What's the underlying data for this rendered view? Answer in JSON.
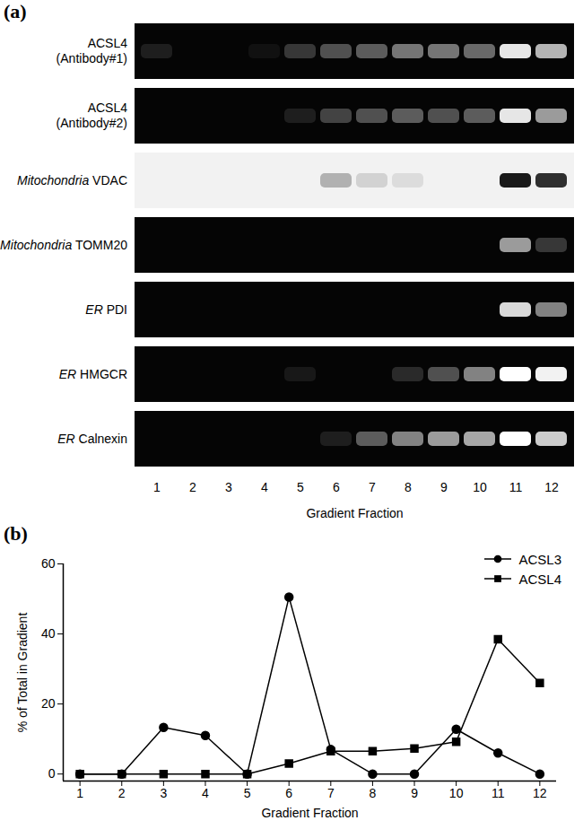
{
  "chart_data": [
    {
      "type": "blot",
      "title": "(a)",
      "x_label": "Gradient Fraction",
      "categories": [
        1,
        2,
        3,
        4,
        5,
        6,
        7,
        8,
        9,
        10,
        11,
        12
      ],
      "series": [
        {
          "name": "ACSL4 (Antibody#1)",
          "color": "#ffffff",
          "values": [
            0.1,
            0,
            0,
            0.05,
            0.2,
            0.3,
            0.35,
            0.45,
            0.45,
            0.4,
            0.9,
            0.7
          ]
        },
        {
          "name": "ACSL4 (Antibody#2)",
          "color": "#ffffff",
          "values": [
            0,
            0,
            0,
            0,
            0.1,
            0.25,
            0.3,
            0.35,
            0.3,
            0.35,
            0.9,
            0.6
          ]
        },
        {
          "compartment": "Mitochondria",
          "name": "VDAC",
          "color": "#1a1a1a",
          "values": [
            0,
            0,
            0,
            0,
            0,
            0.3,
            0.15,
            0.1,
            0,
            0,
            1,
            0.9
          ]
        },
        {
          "compartment": "Mitochondria",
          "name": "TOMM20",
          "color": "#ffffff",
          "values": [
            0,
            0,
            0,
            0,
            0,
            0,
            0,
            0,
            0,
            0,
            0.6,
            0.2
          ]
        },
        {
          "compartment": "ER",
          "name": "PDI",
          "color": "#ffffff",
          "values": [
            0,
            0,
            0,
            0,
            0,
            0,
            0,
            0,
            0,
            0,
            0.85,
            0.5
          ]
        },
        {
          "compartment": "ER",
          "name": "HMGCR",
          "color": "#ffffff",
          "values": [
            0,
            0,
            0,
            0,
            0.08,
            0,
            0,
            0.15,
            0.3,
            0.5,
            1,
            0.95
          ]
        },
        {
          "compartment": "ER",
          "name": "Calnexin",
          "color": "#ffffff",
          "values": [
            0,
            0,
            0,
            0,
            0,
            0.1,
            0.35,
            0.5,
            0.6,
            0.65,
            1,
            0.8
          ]
        }
      ]
    },
    {
      "type": "line",
      "title": "(b)",
      "x_label": "Gradient Fraction",
      "y_label": "% of Total in Gradient",
      "x": [
        1,
        2,
        3,
        4,
        5,
        6,
        7,
        8,
        9,
        10,
        11,
        12
      ],
      "xlim": [
        0.6,
        12.4
      ],
      "xticks": [
        1,
        2,
        3,
        4,
        5,
        6,
        7,
        8,
        9,
        10,
        11,
        12
      ],
      "ylim": [
        -2,
        60
      ],
      "yticks": [
        0,
        20,
        40,
        60
      ],
      "legend": "top-right",
      "series": [
        {
          "name": "ACSL3",
          "color": "#000000",
          "marker": "circle",
          "values": [
            0,
            0,
            13.3,
            11,
            0,
            50.5,
            7,
            0,
            0,
            12.8,
            6,
            0
          ]
        },
        {
          "name": "ACSL4",
          "color": "#000000",
          "marker": "square",
          "values": [
            0,
            0,
            0,
            0,
            0,
            3,
            6.5,
            6.5,
            7.3,
            9.2,
            38.5,
            26
          ]
        }
      ]
    }
  ]
}
